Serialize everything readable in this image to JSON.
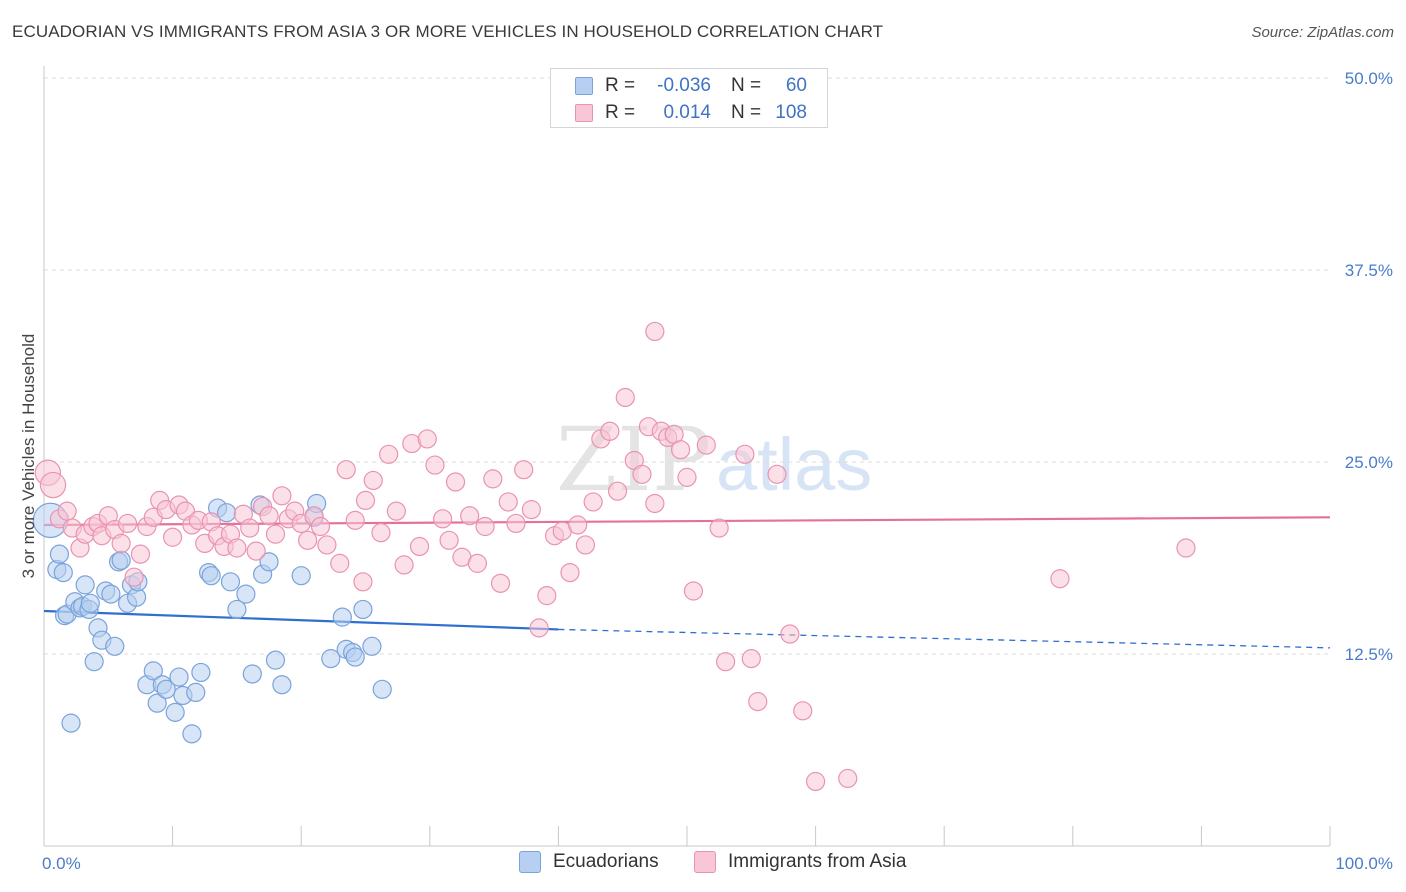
{
  "header": {
    "title": "ECUADORIAN VS IMMIGRANTS FROM ASIA 3 OR MORE VEHICLES IN HOUSEHOLD CORRELATION CHART",
    "source": "Source: ZipAtlas.com"
  },
  "watermark": {
    "part1": "ZIP",
    "part2": "atlas"
  },
  "legend": {
    "rows": [
      {
        "r_label": "R =",
        "r_value": "-0.036",
        "n_label": "N =",
        "n_value": "60",
        "color": "#a9c6ef",
        "border": "#7aa3db"
      },
      {
        "r_label": "R =",
        "r_value": "0.014",
        "n_label": "N =",
        "n_value": "108",
        "color": "#f7bfd1",
        "border": "#e993b2"
      }
    ]
  },
  "bottom_legend": {
    "items": [
      {
        "label": "Ecuadorians",
        "color": "#a9c6ef",
        "border": "#7aa3db"
      },
      {
        "label": "Immigrants from Asia",
        "color": "#f7bfd1",
        "border": "#e993b2"
      }
    ]
  },
  "chart_data": {
    "type": "scatter",
    "title": "ECUADORIAN VS IMMIGRANTS FROM ASIA 3 OR MORE VEHICLES IN HOUSEHOLD CORRELATION CHART",
    "xlabel": "",
    "ylabel": "3 or more Vehicles in Household",
    "xlim": [
      0,
      100
    ],
    "ylim": [
      0,
      50
    ],
    "x_tick_labels": [
      "0.0%",
      "100.0%"
    ],
    "y_ticks": [
      12.5,
      25.0,
      37.5,
      50.0
    ],
    "y_tick_labels": [
      "12.5%",
      "25.0%",
      "37.5%",
      "50.0%"
    ],
    "grid": "horizontal dashed",
    "legend_position": "top-center",
    "series": [
      {
        "name": "Ecuadorians",
        "color": "#7aa3db",
        "fill": "#b7cff1",
        "trend": {
          "x": [
            0,
            40
          ],
          "y": [
            15.3,
            14.1
          ],
          "dashed_x": [
            40,
            100
          ],
          "dashed_y": [
            14.1,
            12.9
          ],
          "color": "#2f6fd0"
        },
        "points": [
          [
            0.5,
            21.2,
            1.9
          ],
          [
            1.0,
            18.0,
            1.0
          ],
          [
            1.2,
            19.0,
            1.0
          ],
          [
            1.5,
            17.8,
            1.0
          ],
          [
            1.6,
            15.0,
            1.0
          ],
          [
            1.8,
            15.1,
            1.0
          ],
          [
            2.1,
            8.0,
            1.0
          ],
          [
            2.4,
            15.9,
            1.0
          ],
          [
            2.8,
            15.5,
            1.0
          ],
          [
            3.0,
            15.6,
            1.0
          ],
          [
            3.2,
            17.0,
            1.0
          ],
          [
            3.5,
            15.4,
            1.0
          ],
          [
            3.6,
            15.8,
            1.0
          ],
          [
            3.9,
            12.0,
            1.0
          ],
          [
            4.2,
            14.2,
            1.0
          ],
          [
            4.5,
            13.4,
            1.0
          ],
          [
            4.8,
            16.6,
            1.0
          ],
          [
            5.2,
            16.4,
            1.0
          ],
          [
            5.5,
            13.0,
            1.0
          ],
          [
            5.8,
            18.5,
            1.0
          ],
          [
            6.0,
            18.6,
            1.0
          ],
          [
            6.5,
            15.8,
            1.0
          ],
          [
            6.8,
            17.0,
            1.0
          ],
          [
            7.2,
            16.2,
            1.0
          ],
          [
            7.3,
            17.2,
            1.0
          ],
          [
            8.0,
            10.5,
            1.0
          ],
          [
            8.5,
            11.4,
            1.0
          ],
          [
            8.8,
            9.3,
            1.0
          ],
          [
            9.2,
            10.5,
            1.0
          ],
          [
            9.5,
            10.2,
            1.0
          ],
          [
            10.2,
            8.7,
            1.0
          ],
          [
            10.5,
            11.0,
            1.0
          ],
          [
            10.8,
            9.8,
            1.0
          ],
          [
            11.5,
            7.3,
            1.0
          ],
          [
            11.8,
            10.0,
            1.0
          ],
          [
            12.2,
            11.3,
            1.0
          ],
          [
            12.8,
            17.8,
            1.0
          ],
          [
            13.0,
            17.6,
            1.0
          ],
          [
            13.5,
            22.0,
            1.0
          ],
          [
            14.2,
            21.7,
            1.0
          ],
          [
            14.5,
            17.2,
            1.0
          ],
          [
            15.0,
            15.4,
            1.0
          ],
          [
            15.7,
            16.4,
            1.0
          ],
          [
            16.2,
            11.2,
            1.0
          ],
          [
            16.8,
            22.2,
            1.0
          ],
          [
            17.0,
            17.7,
            1.0
          ],
          [
            17.5,
            18.5,
            1.0
          ],
          [
            18.0,
            12.1,
            1.0
          ],
          [
            18.5,
            10.5,
            1.0
          ],
          [
            20.0,
            17.6,
            1.0
          ],
          [
            21.0,
            21.4,
            1.0
          ],
          [
            21.2,
            22.3,
            1.0
          ],
          [
            22.3,
            12.2,
            1.0
          ],
          [
            23.2,
            14.9,
            1.0
          ],
          [
            23.5,
            12.8,
            1.0
          ],
          [
            24.0,
            12.6,
            1.0
          ],
          [
            24.2,
            12.3,
            1.0
          ],
          [
            24.8,
            15.4,
            1.0
          ],
          [
            25.5,
            13.0,
            1.0
          ],
          [
            26.3,
            10.2,
            1.0
          ]
        ]
      },
      {
        "name": "Immigrants from Asia",
        "color": "#e993b2",
        "fill": "#f8c6d6",
        "trend": {
          "x": [
            0,
            100
          ],
          "y": [
            20.9,
            21.4
          ],
          "color": "#e5709a"
        },
        "points": [
          [
            0.3,
            24.3,
            1.4
          ],
          [
            0.7,
            23.5,
            1.4
          ],
          [
            1.2,
            21.3,
            1.0
          ],
          [
            1.8,
            21.8,
            1.0
          ],
          [
            2.2,
            20.7,
            1.0
          ],
          [
            2.8,
            19.4,
            1.0
          ],
          [
            3.2,
            20.3,
            1.0
          ],
          [
            3.8,
            20.8,
            1.0
          ],
          [
            4.2,
            21.0,
            1.0
          ],
          [
            4.5,
            20.2,
            1.0
          ],
          [
            5.0,
            21.5,
            1.0
          ],
          [
            5.5,
            20.6,
            1.0
          ],
          [
            6.0,
            19.7,
            1.0
          ],
          [
            6.5,
            21.0,
            1.0
          ],
          [
            7.0,
            17.5,
            1.0
          ],
          [
            7.5,
            19.0,
            1.0
          ],
          [
            8.0,
            20.8,
            1.0
          ],
          [
            8.5,
            21.4,
            1.0
          ],
          [
            9.0,
            22.5,
            1.0
          ],
          [
            9.5,
            21.9,
            1.0
          ],
          [
            10.0,
            20.1,
            1.0
          ],
          [
            10.5,
            22.2,
            1.0
          ],
          [
            11.0,
            21.8,
            1.0
          ],
          [
            11.5,
            20.9,
            1.0
          ],
          [
            12.0,
            21.2,
            1.0
          ],
          [
            12.5,
            19.7,
            1.0
          ],
          [
            13.0,
            21.1,
            1.0
          ],
          [
            13.5,
            20.2,
            1.0
          ],
          [
            14.0,
            19.5,
            1.0
          ],
          [
            14.5,
            20.3,
            1.0
          ],
          [
            15.0,
            19.4,
            1.0
          ],
          [
            15.5,
            21.6,
            1.0
          ],
          [
            16.0,
            20.7,
            1.0
          ],
          [
            16.5,
            19.2,
            1.0
          ],
          [
            17.0,
            22.1,
            1.0
          ],
          [
            17.5,
            21.5,
            1.0
          ],
          [
            18.0,
            20.3,
            1.0
          ],
          [
            18.5,
            22.8,
            1.0
          ],
          [
            19.0,
            21.3,
            1.0
          ],
          [
            19.5,
            21.8,
            1.0
          ],
          [
            20.0,
            21.0,
            1.0
          ],
          [
            20.5,
            19.9,
            1.0
          ],
          [
            21.0,
            21.5,
            1.0
          ],
          [
            21.5,
            20.8,
            1.0
          ],
          [
            22.0,
            19.6,
            1.0
          ],
          [
            23.0,
            18.4,
            1.0
          ],
          [
            23.5,
            24.5,
            1.0
          ],
          [
            24.2,
            21.2,
            1.0
          ],
          [
            24.8,
            17.2,
            1.0
          ],
          [
            25.0,
            22.5,
            1.0
          ],
          [
            25.6,
            23.8,
            1.0
          ],
          [
            26.2,
            20.4,
            1.0
          ],
          [
            26.8,
            25.5,
            1.0
          ],
          [
            27.4,
            21.8,
            1.0
          ],
          [
            28.0,
            18.3,
            1.0
          ],
          [
            28.6,
            26.2,
            1.0
          ],
          [
            29.2,
            19.5,
            1.0
          ],
          [
            29.8,
            26.5,
            1.0
          ],
          [
            30.4,
            24.8,
            1.0
          ],
          [
            31.0,
            21.3,
            1.0
          ],
          [
            31.5,
            19.9,
            1.0
          ],
          [
            32.0,
            23.7,
            1.0
          ],
          [
            32.5,
            18.8,
            1.0
          ],
          [
            33.1,
            21.5,
            1.0
          ],
          [
            33.7,
            18.4,
            1.0
          ],
          [
            34.3,
            20.8,
            1.0
          ],
          [
            34.9,
            23.9,
            1.0
          ],
          [
            35.5,
            17.1,
            1.0
          ],
          [
            36.1,
            22.4,
            1.0
          ],
          [
            36.7,
            21.0,
            1.0
          ],
          [
            37.3,
            24.5,
            1.0
          ],
          [
            37.9,
            21.9,
            1.0
          ],
          [
            38.5,
            14.2,
            1.0
          ],
          [
            39.1,
            16.3,
            1.0
          ],
          [
            39.7,
            20.2,
            1.0
          ],
          [
            40.3,
            20.5,
            1.0
          ],
          [
            40.9,
            17.8,
            1.0
          ],
          [
            41.5,
            20.9,
            1.0
          ],
          [
            42.1,
            19.6,
            1.0
          ],
          [
            42.7,
            22.4,
            1.0
          ],
          [
            43.3,
            26.5,
            1.0
          ],
          [
            44.0,
            27.0,
            1.0
          ],
          [
            44.6,
            23.1,
            1.0
          ],
          [
            45.2,
            29.2,
            1.0
          ],
          [
            45.9,
            25.1,
            1.0
          ],
          [
            46.5,
            24.2,
            1.0
          ],
          [
            47.0,
            27.3,
            1.0
          ],
          [
            47.5,
            22.3,
            1.0
          ],
          [
            48.0,
            27.0,
            1.0
          ],
          [
            48.5,
            26.6,
            1.0
          ],
          [
            49.0,
            26.8,
            1.0
          ],
          [
            49.5,
            25.8,
            1.0
          ],
          [
            50.0,
            24.0,
            1.0
          ],
          [
            50.5,
            16.6,
            1.0
          ],
          [
            51.5,
            26.1,
            1.0
          ],
          [
            52.5,
            20.7,
            1.0
          ],
          [
            53.0,
            12.0,
            1.0
          ],
          [
            54.5,
            25.5,
            1.0
          ],
          [
            55.0,
            12.2,
            1.0
          ],
          [
            55.5,
            9.4,
            1.0
          ],
          [
            57.0,
            24.2,
            1.0
          ],
          [
            58.0,
            13.8,
            1.0
          ],
          [
            59.0,
            8.8,
            1.0
          ],
          [
            60.0,
            4.2,
            1.0
          ],
          [
            62.5,
            4.4,
            1.0
          ],
          [
            79.0,
            17.4,
            1.0
          ],
          [
            88.8,
            19.4,
            1.0
          ],
          [
            47.5,
            33.5,
            1.0
          ]
        ]
      }
    ]
  }
}
